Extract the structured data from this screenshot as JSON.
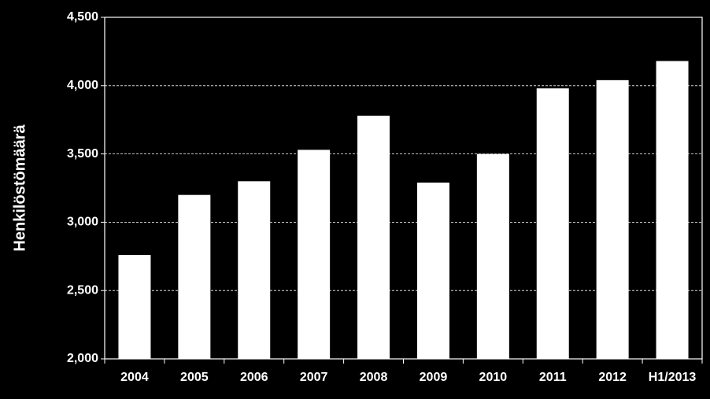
{
  "chart_data": {
    "type": "bar",
    "y_label": "Henkilöstömäärä",
    "categories": [
      "2004",
      "2005",
      "2006",
      "2007",
      "2008",
      "2009",
      "2010",
      "2011",
      "2012",
      "H1/2013"
    ],
    "values": [
      2760,
      3200,
      3300,
      3530,
      3780,
      3290,
      3500,
      3980,
      4040,
      4180
    ],
    "color": "#ffffff",
    "ylim": [
      2000,
      4500
    ],
    "yticks": [
      {
        "value": 2000,
        "label": "2,000"
      },
      {
        "value": 2500,
        "label": "2,500"
      },
      {
        "value": 3000,
        "label": "3,000"
      },
      {
        "value": 3500,
        "label": "3,500"
      },
      {
        "value": 4000,
        "label": "4,000"
      },
      {
        "value": 4500,
        "label": "4,500"
      }
    ],
    "grid": true
  }
}
